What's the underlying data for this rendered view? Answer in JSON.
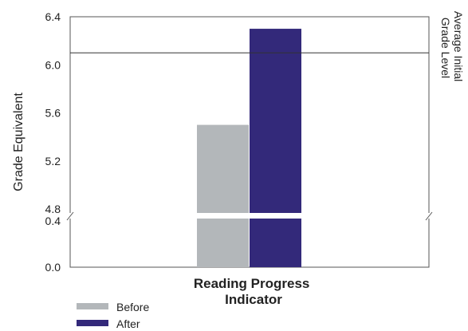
{
  "chart_data": {
    "type": "bar",
    "categories": [
      "Reading Progress Indicator"
    ],
    "category_label_lines": [
      "Reading Progress",
      "Indicator"
    ],
    "series": [
      {
        "name": "Before",
        "values": [
          5.5
        ],
        "color": "#b3b7ba"
      },
      {
        "name": "After",
        "values": [
          6.3
        ],
        "color": "#33297a"
      }
    ],
    "ylabel": "Grade Equivalent",
    "ylim_upper": [
      4.8,
      6.4
    ],
    "ylim_lower": [
      0.0,
      0.4
    ],
    "axis_break": true,
    "yticks_upper": [
      "4.8",
      "5.2",
      "5.6",
      "6.0",
      "6.4"
    ],
    "yticks_lower": [
      "0.0",
      "0.4"
    ],
    "reference_line": {
      "value": 6.1,
      "label_lines": [
        "Average Initial",
        "Grade Level"
      ]
    },
    "legend_placement": "bottom-left",
    "grid": false
  }
}
